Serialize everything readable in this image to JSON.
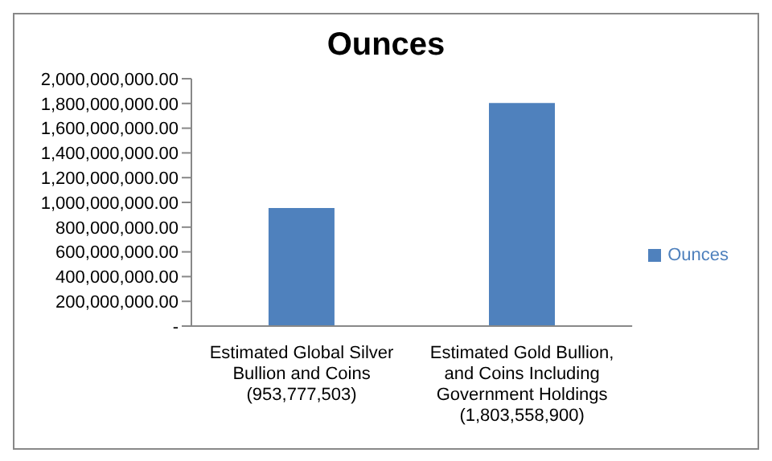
{
  "chart_data": {
    "type": "bar",
    "title": "Ounces",
    "categories": [
      "Estimated Global Silver\nBullion and Coins\n(953,777,503)",
      "Estimated Gold Bullion,\nand Coins Including\nGovernment Holdings\n(1,803,558,900)"
    ],
    "series": [
      {
        "name": "Ounces",
        "color": "#4f81bd",
        "values": [
          953777503,
          1803558900
        ]
      }
    ],
    "ylim": [
      0,
      2000000000
    ],
    "yticks": [
      {
        "value": 0,
        "label": "-"
      },
      {
        "value": 200000000,
        "label": "200,000,000.00"
      },
      {
        "value": 400000000,
        "label": "400,000,000.00"
      },
      {
        "value": 600000000,
        "label": "600,000,000.00"
      },
      {
        "value": 800000000,
        "label": "800,000,000.00"
      },
      {
        "value": 1000000000,
        "label": "1,000,000,000.00"
      },
      {
        "value": 1200000000,
        "label": "1,200,000,000.00"
      },
      {
        "value": 1400000000,
        "label": "1,400,000,000.00"
      },
      {
        "value": 1600000000,
        "label": "1,600,000,000.00"
      },
      {
        "value": 1800000000,
        "label": "1,800,000,000.00"
      },
      {
        "value": 2000000000,
        "label": "2,000,000,000.00"
      }
    ],
    "legend": "right"
  }
}
